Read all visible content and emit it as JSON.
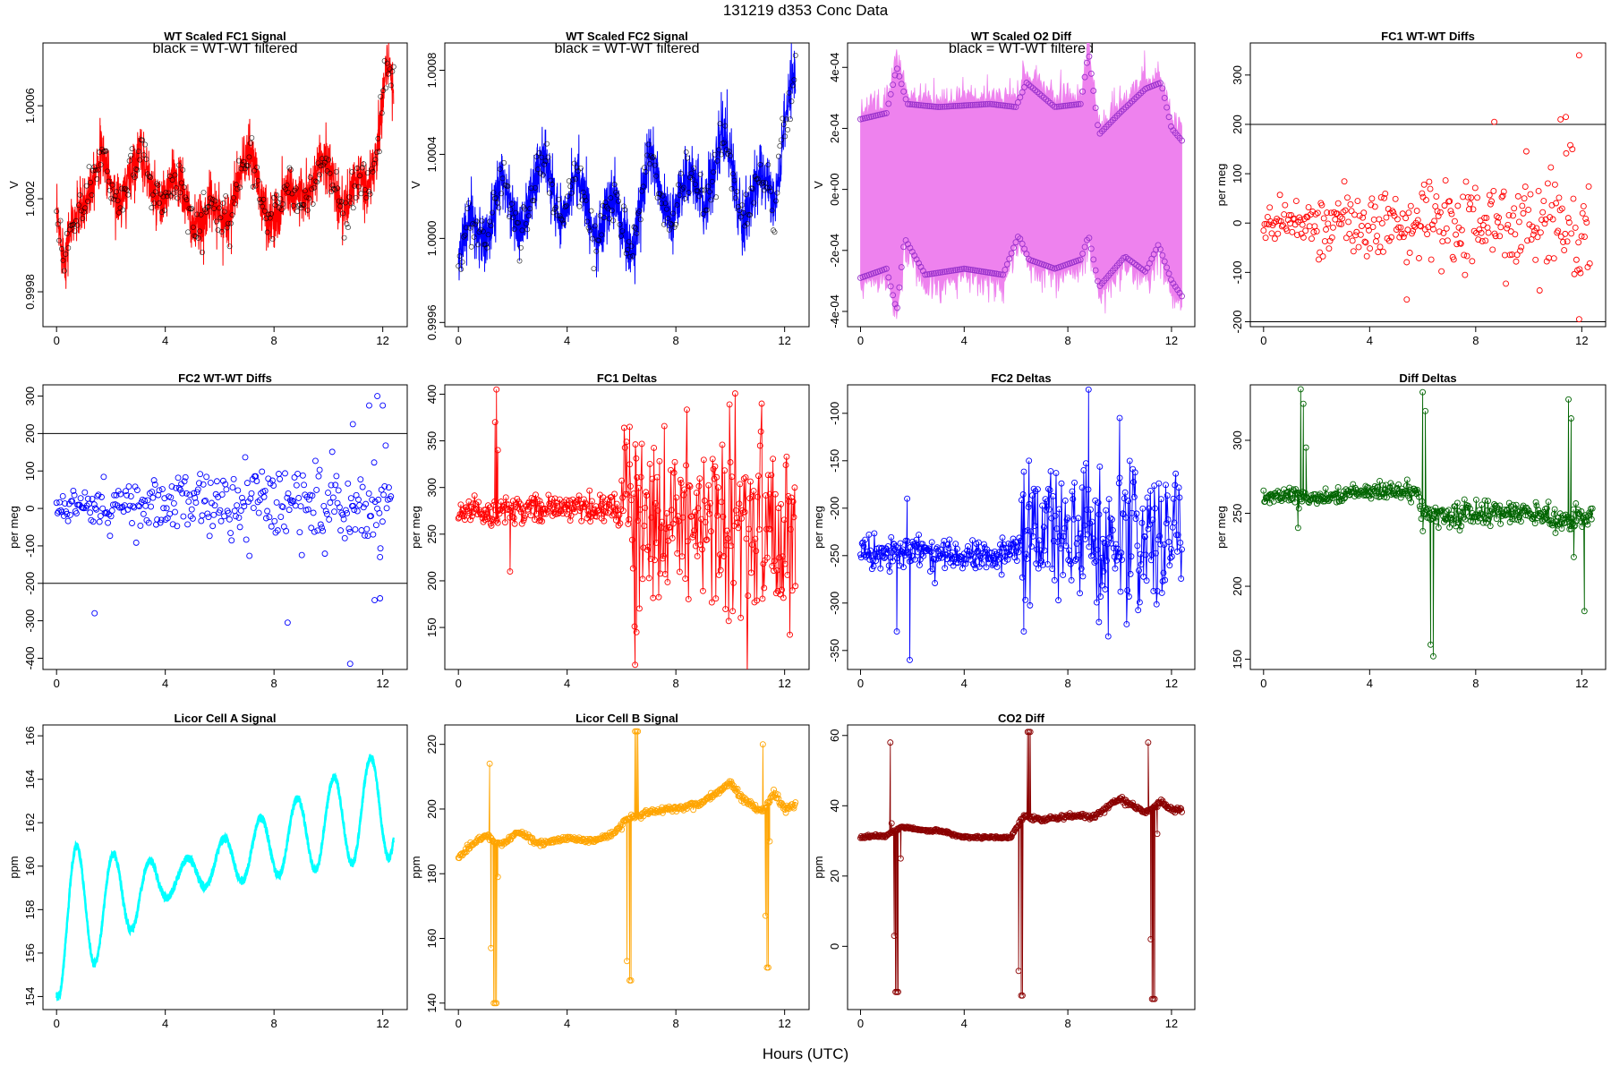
{
  "page": {
    "title": "131219    d353    Conc Data",
    "x_axis_label": "Hours (UTC)"
  },
  "chart_data": [
    {
      "id": "p1",
      "type": "line",
      "title": "WT Scaled FC1 Signal",
      "subtitle": "black = WT-WT filtered",
      "ylabel": "V",
      "xlim": [
        -0.5,
        12.9
      ],
      "ylim": [
        0.99965,
        1.00087
      ],
      "yticks": [
        0.9998,
        1.0002,
        1.0006
      ],
      "ytick_labels": [
        "0.9998",
        "1.0002",
        "1.0006"
      ],
      "xticks": [
        0,
        4,
        8,
        12
      ],
      "color": "#ff0000",
      "style": "noisy",
      "t_end": 12.4,
      "anchors": [
        [
          0,
          1.0001
        ],
        [
          0.3,
          0.99985
        ],
        [
          0.8,
          1.0002
        ],
        [
          1.2,
          1.0003
        ],
        [
          1.6,
          1.0003
        ],
        [
          2.0,
          1.00025
        ],
        [
          2.6,
          1.0003
        ],
        [
          3.0,
          1.0003
        ],
        [
          3.5,
          1.0003
        ],
        [
          4.2,
          1.0002
        ],
        [
          4.8,
          1.0002
        ],
        [
          5.5,
          1.0001
        ],
        [
          6.0,
          1.0001
        ],
        [
          6.6,
          1.0003
        ],
        [
          7.2,
          1.0003
        ],
        [
          7.8,
          1.0002
        ],
        [
          8.2,
          1.0001
        ],
        [
          8.7,
          1.0002
        ],
        [
          9.0,
          1.0003
        ],
        [
          9.6,
          1.00025
        ],
        [
          10.2,
          1.0003
        ],
        [
          10.8,
          1.0002
        ],
        [
          11.4,
          1.0002
        ],
        [
          11.8,
          1.0005
        ],
        [
          12.1,
          1.0008
        ],
        [
          12.4,
          1.0006
        ]
      ],
      "amplitude": 9e-05,
      "sigma": 6e-05,
      "osc_period": 1.35,
      "overlay": {
        "color": "#000000",
        "kind": "circles"
      }
    },
    {
      "id": "p2",
      "type": "line",
      "title": "WT Scaled FC2 Signal",
      "subtitle": "black = WT-WT filtered",
      "ylabel": "V",
      "xlim": [
        -0.5,
        12.9
      ],
      "ylim": [
        0.99958,
        1.00093
      ],
      "yticks": [
        0.9996,
        1.0,
        1.0004,
        1.0008
      ],
      "ytick_labels": [
        "0.9996",
        "1.0000",
        "1.0004",
        "1.0008"
      ],
      "xticks": [
        0,
        4,
        8,
        12
      ],
      "color": "#0000ff",
      "style": "noisy",
      "t_end": 12.4,
      "anchors": [
        [
          0,
          0.9999
        ],
        [
          0.5,
          1.0
        ],
        [
          1.0,
          1.0001
        ],
        [
          1.5,
          1.0002
        ],
        [
          2.0,
          1.0001
        ],
        [
          2.6,
          1.0002
        ],
        [
          3.2,
          1.0003
        ],
        [
          3.8,
          1.0002
        ],
        [
          4.4,
          1.0002
        ],
        [
          5.0,
          1.0001
        ],
        [
          5.6,
          1.0001
        ],
        [
          6.3,
          1.0
        ],
        [
          7.0,
          1.0003
        ],
        [
          7.6,
          1.0002
        ],
        [
          8.1,
          1.0002
        ],
        [
          8.6,
          1.0002
        ],
        [
          9.2,
          1.0003
        ],
        [
          9.8,
          1.0004
        ],
        [
          10.4,
          1.0002
        ],
        [
          11.0,
          1.0002
        ],
        [
          11.6,
          1.0002
        ],
        [
          12.0,
          1.0006
        ],
        [
          12.3,
          1.0007
        ]
      ],
      "amplitude": 0.0001,
      "sigma": 7e-05,
      "osc_period": 1.35,
      "overlay": {
        "color": "#000000",
        "kind": "circles"
      }
    },
    {
      "id": "p3",
      "type": "line",
      "title": "WT Scaled O2 Diff",
      "subtitle": "black = WT-WT filtered",
      "ylabel": "V",
      "xlim": [
        -0.5,
        12.9
      ],
      "ylim": [
        -0.00045,
        0.00048
      ],
      "yticks": [
        -0.0004,
        -0.0002,
        0.0,
        0.0002,
        0.0004
      ],
      "ytick_labels": [
        "-4e-04",
        "-2e-04",
        "0e+00",
        "2e-04",
        "4e-04"
      ],
      "xticks": [
        0,
        4,
        8,
        12
      ],
      "color": "#ee82ee",
      "style": "band",
      "t_end": 12.4,
      "upper": [
        [
          0,
          0.00023
        ],
        [
          1.0,
          0.00025
        ],
        [
          1.4,
          0.0004
        ],
        [
          1.8,
          0.00028
        ],
        [
          3.0,
          0.00027
        ],
        [
          5.0,
          0.00028
        ],
        [
          6.0,
          0.00027
        ],
        [
          6.4,
          0.00035
        ],
        [
          7.5,
          0.00027
        ],
        [
          8.5,
          0.00028
        ],
        [
          8.8,
          0.00045
        ],
        [
          9.2,
          0.00018
        ],
        [
          10.0,
          0.00025
        ],
        [
          11.0,
          0.00033
        ],
        [
          11.6,
          0.00035
        ],
        [
          12.0,
          0.0002
        ],
        [
          12.4,
          0.00016
        ]
      ],
      "lower": [
        [
          0,
          -0.00029
        ],
        [
          1.0,
          -0.00026
        ],
        [
          1.4,
          -0.0004
        ],
        [
          1.7,
          -0.00016
        ],
        [
          2.5,
          -0.00028
        ],
        [
          4.0,
          -0.00026
        ],
        [
          5.5,
          -0.00028
        ],
        [
          6.1,
          -0.00015
        ],
        [
          6.5,
          -0.00023
        ],
        [
          7.5,
          -0.00026
        ],
        [
          8.5,
          -0.00023
        ],
        [
          8.8,
          -0.00015
        ],
        [
          9.2,
          -0.00032
        ],
        [
          10.2,
          -0.00022
        ],
        [
          11.0,
          -0.00027
        ],
        [
          11.5,
          -0.00018
        ],
        [
          12.0,
          -0.0003
        ],
        [
          12.4,
          -0.00035
        ]
      ],
      "overlay": {
        "color": "#9932cc",
        "kind": "circles"
      }
    },
    {
      "id": "p4",
      "type": "scatter",
      "title": "FC1 WT-WT Diffs",
      "ylabel": "per meg",
      "xlim": [
        -0.5,
        12.9
      ],
      "ylim": [
        -210,
        365
      ],
      "yticks": [
        -200,
        -100,
        0,
        100,
        200,
        300
      ],
      "ytick_labels": [
        "-200",
        "-100",
        "0",
        "100",
        "200",
        "300"
      ],
      "xticks": [
        0,
        4,
        8,
        12
      ],
      "color": "#ff0000",
      "hlines": [
        200,
        -200
      ],
      "t_end": 12.3,
      "n_points": 320,
      "center": 0,
      "spread_start": 25,
      "spread_end": 85,
      "outliers": [
        [
          11.9,
          340
        ],
        [
          11.9,
          -195
        ],
        [
          11.2,
          210
        ],
        [
          11.4,
          215
        ],
        [
          8.7,
          205
        ],
        [
          5.4,
          -155
        ]
      ]
    },
    {
      "id": "p5",
      "type": "scatter",
      "title": "FC2 WT-WT Diffs",
      "ylabel": "per meg",
      "xlim": [
        -0.5,
        12.9
      ],
      "ylim": [
        -430,
        330
      ],
      "yticks": [
        -400,
        -300,
        -200,
        -100,
        0,
        100,
        200,
        300
      ],
      "ytick_labels": [
        "-400",
        "-300",
        "-200",
        "-100",
        "0",
        "100",
        "200",
        "300"
      ],
      "xticks": [
        0,
        4,
        8,
        12
      ],
      "color": "#0000ff",
      "hlines": [
        200,
        -200
      ],
      "t_end": 12.3,
      "n_points": 320,
      "center": 10,
      "spread_start": 30,
      "spread_end": 90,
      "outliers": [
        [
          1.4,
          -280
        ],
        [
          8.5,
          -305
        ],
        [
          10.8,
          -415
        ],
        [
          10.9,
          225
        ],
        [
          11.5,
          275
        ],
        [
          11.8,
          300
        ],
        [
          12.0,
          275
        ],
        [
          11.7,
          -245
        ],
        [
          11.9,
          -240
        ],
        [
          11.9,
          -130
        ]
      ]
    },
    {
      "id": "p6",
      "type": "line",
      "title": "FC1 Deltas",
      "ylabel": "per meg",
      "xlim": [
        -0.5,
        12.9
      ],
      "ylim": [
        105,
        410
      ],
      "yticks": [
        150,
        200,
        250,
        300,
        350,
        400
      ],
      "ytick_labels": [
        "150",
        "200",
        "250",
        "300",
        "350",
        "400"
      ],
      "xticks": [
        0,
        4,
        8,
        12
      ],
      "color": "#ff0000",
      "style": "points-line",
      "t_end": 12.4,
      "base": [
        [
          0,
          275
        ],
        [
          5.5,
          278
        ],
        [
          6.0,
          270
        ],
        [
          6.5,
          260
        ],
        [
          12.4,
          258
        ]
      ],
      "jitter_start": 10,
      "jitter_end": 70,
      "jitter_switch": 6.0,
      "spikes": [
        [
          1.4,
          405
        ],
        [
          1.35,
          370
        ],
        [
          1.45,
          340
        ],
        [
          1.9,
          210
        ],
        [
          6.5,
          110
        ],
        [
          6.55,
          145
        ],
        [
          6.3,
          365
        ]
      ]
    },
    {
      "id": "p7",
      "type": "line",
      "title": "FC2 Deltas",
      "ylabel": "per meg",
      "xlim": [
        -0.5,
        12.9
      ],
      "ylim": [
        -370,
        -70
      ],
      "yticks": [
        -350,
        -300,
        -250,
        -200,
        -150,
        -100
      ],
      "ytick_labels": [
        "-350",
        "-300",
        "-250",
        "-200",
        "-150",
        "-100"
      ],
      "xticks": [
        0,
        4,
        8,
        12
      ],
      "color": "#0000ff",
      "style": "points-line",
      "t_end": 12.4,
      "base": [
        [
          0,
          -245
        ],
        [
          5.5,
          -250
        ],
        [
          6.2,
          -235
        ],
        [
          8.5,
          -225
        ],
        [
          12.4,
          -240
        ]
      ],
      "jitter_start": 12,
      "jitter_end": 55,
      "jitter_switch": 6.2,
      "spikes": [
        [
          1.4,
          -330
        ],
        [
          1.9,
          -360
        ],
        [
          1.8,
          -190
        ],
        [
          6.3,
          -330
        ],
        [
          6.5,
          -150
        ],
        [
          8.8,
          -75
        ],
        [
          9.2,
          -320
        ],
        [
          10.0,
          -105
        ]
      ]
    },
    {
      "id": "p8",
      "type": "line",
      "title": "Diff Deltas",
      "ylabel": "per meg",
      "xlim": [
        -0.5,
        12.9
      ],
      "ylim": [
        143,
        338
      ],
      "yticks": [
        150,
        200,
        250,
        300
      ],
      "ytick_labels": [
        "150",
        "200",
        "250",
        "300"
      ],
      "xticks": [
        0,
        4,
        8,
        12
      ],
      "color": "#006400",
      "style": "points-line",
      "t_end": 12.4,
      "base": [
        [
          0,
          261
        ],
        [
          1.2,
          262
        ],
        [
          2.0,
          260
        ],
        [
          4.0,
          266
        ],
        [
          5.8,
          264
        ],
        [
          6.0,
          248
        ],
        [
          8.0,
          250
        ],
        [
          10.0,
          250
        ],
        [
          11.0,
          245
        ],
        [
          12.4,
          248
        ]
      ],
      "jitter_start": 4,
      "jitter_end": 6,
      "jitter_switch": 6.0,
      "spikes": [
        [
          1.3,
          240
        ],
        [
          1.4,
          335
        ],
        [
          1.5,
          325
        ],
        [
          1.6,
          295
        ],
        [
          6.0,
          333
        ],
        [
          6.1,
          320
        ],
        [
          6.3,
          160
        ],
        [
          6.4,
          152
        ],
        [
          11.5,
          328
        ],
        [
          11.6,
          315
        ],
        [
          11.7,
          220
        ],
        [
          12.1,
          183
        ]
      ]
    },
    {
      "id": "p9",
      "type": "line",
      "title": "Licor Cell A Signal",
      "ylabel": "ppm",
      "xlim": [
        -0.5,
        12.9
      ],
      "ylim": [
        153.4,
        166.5
      ],
      "yticks": [
        154,
        156,
        158,
        160,
        162,
        164,
        166
      ],
      "ytick_labels": [
        "154",
        "156",
        "158",
        "160",
        "162",
        "164",
        "166"
      ],
      "xticks": [
        0,
        4,
        8,
        12
      ],
      "color": "#00ffff",
      "style": "wave",
      "t_end": 12.4,
      "wave": {
        "trend_start": 157.5,
        "trend_end": 163.0,
        "amp_start": 3.6,
        "amp_mid": 0.6,
        "amp_end": 2.6,
        "period": 1.35,
        "phase": -1.9
      },
      "thickness": 0.35
    },
    {
      "id": "p10",
      "type": "line",
      "title": "Licor Cell B Signal",
      "ylabel": "ppm",
      "xlim": [
        -0.5,
        12.9
      ],
      "ylim": [
        138,
        226
      ],
      "yticks": [
        140,
        160,
        180,
        200,
        220
      ],
      "ytick_labels": [
        "140",
        "160",
        "180",
        "200",
        "220"
      ],
      "xticks": [
        0,
        4,
        8,
        12
      ],
      "color": "#ffa500",
      "style": "points-line",
      "t_end": 12.4,
      "base": [
        [
          0,
          185
        ],
        [
          0.6,
          190
        ],
        [
          1.0,
          192
        ],
        [
          1.3,
          190
        ],
        [
          1.6,
          189
        ],
        [
          2.2,
          193
        ],
        [
          3.0,
          189
        ],
        [
          4.0,
          191
        ],
        [
          5.0,
          190
        ],
        [
          5.8,
          193
        ],
        [
          6.2,
          197
        ],
        [
          7.0,
          199
        ],
        [
          8.0,
          200
        ],
        [
          9.0,
          202
        ],
        [
          9.5,
          205
        ],
        [
          10.0,
          208
        ],
        [
          10.5,
          203
        ],
        [
          11.2,
          199
        ],
        [
          11.6,
          205
        ],
        [
          12.0,
          200
        ],
        [
          12.4,
          201
        ]
      ],
      "jitter_start": 0.6,
      "jitter_end": 0.8,
      "jitter_switch": 6.0,
      "spikes": [
        [
          1.15,
          214
        ],
        [
          1.2,
          157
        ],
        [
          1.3,
          140
        ],
        [
          1.35,
          140
        ],
        [
          1.4,
          140
        ],
        [
          1.45,
          179
        ],
        [
          6.2,
          153
        ],
        [
          6.3,
          147
        ],
        [
          6.35,
          147
        ],
        [
          6.5,
          224
        ],
        [
          6.55,
          224
        ],
        [
          6.6,
          224
        ],
        [
          11.2,
          220
        ],
        [
          11.3,
          167
        ],
        [
          11.35,
          151
        ],
        [
          11.4,
          151
        ],
        [
          11.45,
          190
        ]
      ]
    },
    {
      "id": "p11",
      "type": "line",
      "title": "CO2 Diff",
      "ylabel": "ppm",
      "xlim": [
        -0.5,
        12.9
      ],
      "ylim": [
        -18,
        63
      ],
      "yticks": [
        0,
        20,
        40,
        60
      ],
      "ytick_labels": [
        "0",
        "20",
        "40",
        "60"
      ],
      "xticks": [
        0,
        4,
        8,
        12
      ],
      "color": "#8b0000",
      "style": "points-line",
      "t_end": 12.4,
      "base": [
        [
          0,
          31
        ],
        [
          1.0,
          31.5
        ],
        [
          1.6,
          34
        ],
        [
          2.5,
          33
        ],
        [
          3.0,
          33
        ],
        [
          4.0,
          31
        ],
        [
          5.0,
          31
        ],
        [
          5.8,
          31
        ],
        [
          6.3,
          37
        ],
        [
          7.0,
          36
        ],
        [
          8.0,
          37
        ],
        [
          9.0,
          37
        ],
        [
          10.0,
          42
        ],
        [
          10.5,
          40
        ],
        [
          11.0,
          38
        ],
        [
          11.6,
          41
        ],
        [
          12.0,
          39
        ],
        [
          12.4,
          39
        ]
      ],
      "jitter_start": 0.3,
      "jitter_end": 0.5,
      "jitter_switch": 6.0,
      "spikes": [
        [
          1.15,
          58
        ],
        [
          1.2,
          35
        ],
        [
          1.3,
          3
        ],
        [
          1.35,
          -13
        ],
        [
          1.4,
          -13
        ],
        [
          1.45,
          -13
        ],
        [
          1.55,
          25
        ],
        [
          6.1,
          -7
        ],
        [
          6.2,
          -14
        ],
        [
          6.25,
          -14
        ],
        [
          6.45,
          61
        ],
        [
          6.5,
          61
        ],
        [
          6.55,
          61
        ],
        [
          11.1,
          58
        ],
        [
          11.2,
          2
        ],
        [
          11.25,
          -15
        ],
        [
          11.3,
          -15
        ],
        [
          11.35,
          -15
        ],
        [
          11.45,
          32
        ]
      ]
    }
  ]
}
